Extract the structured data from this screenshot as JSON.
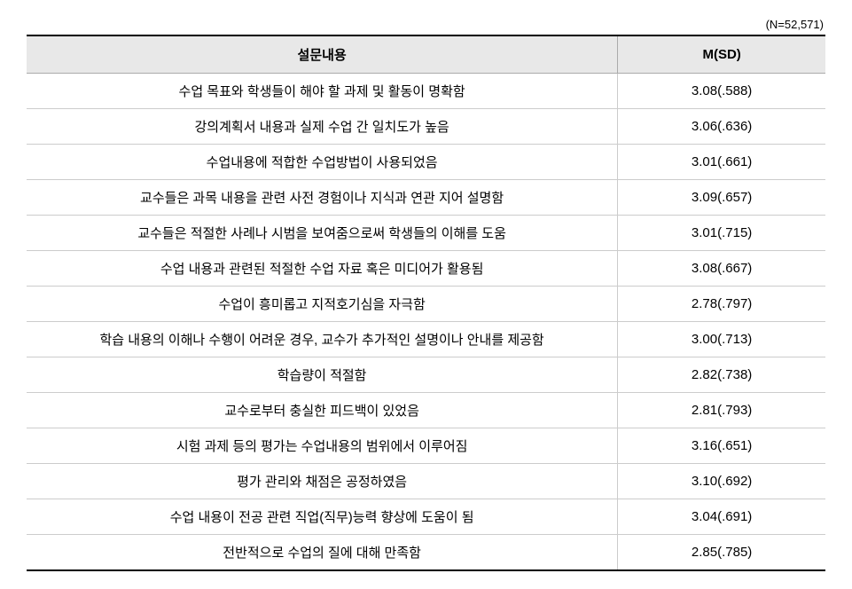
{
  "sample_size_label": "(N=52,571)",
  "columns": {
    "question": "설문내용",
    "value": "M(SD)"
  },
  "rows": [
    {
      "question": "수업 목표와 학생들이 해야 할 과제 및 활동이 명확함",
      "value": "3.08(.588)"
    },
    {
      "question": "강의계획서 내용과 실제 수업 간 일치도가 높음",
      "value": "3.06(.636)"
    },
    {
      "question": "수업내용에 적합한 수업방법이 사용되었음",
      "value": "3.01(.661)"
    },
    {
      "question": "교수들은 과목 내용을 관련 사전 경험이나 지식과 연관 지어 설명함",
      "value": "3.09(.657)"
    },
    {
      "question": "교수들은 적절한 사례나 시범을 보여줌으로써 학생들의 이해를 도움",
      "value": "3.01(.715)"
    },
    {
      "question": "수업 내용과 관련된 적절한 수업 자료 혹은 미디어가 활용됨",
      "value": "3.08(.667)"
    },
    {
      "question": "수업이 흥미롭고 지적호기심을 자극함",
      "value": "2.78(.797)"
    },
    {
      "question": "학습 내용의 이해나 수행이 어려운 경우, 교수가 추가적인 설명이나 안내를 제공함",
      "value": "3.00(.713)"
    },
    {
      "question": "학습량이 적절함",
      "value": "2.82(.738)"
    },
    {
      "question": "교수로부터 충실한 피드백이 있었음",
      "value": "2.81(.793)"
    },
    {
      "question": "시험 과제 등의 평가는 수업내용의 범위에서 이루어짐",
      "value": "3.16(.651)"
    },
    {
      "question": "평가 관리와 채점은 공정하였음",
      "value": "3.10(.692)"
    },
    {
      "question": "수업 내용이 전공 관련 직업(직무)능력 향상에 도움이 됨",
      "value": "3.04(.691)"
    },
    {
      "question": "전반적으로 수업의 질에 대해 만족함",
      "value": "2.85(.785)"
    }
  ]
}
